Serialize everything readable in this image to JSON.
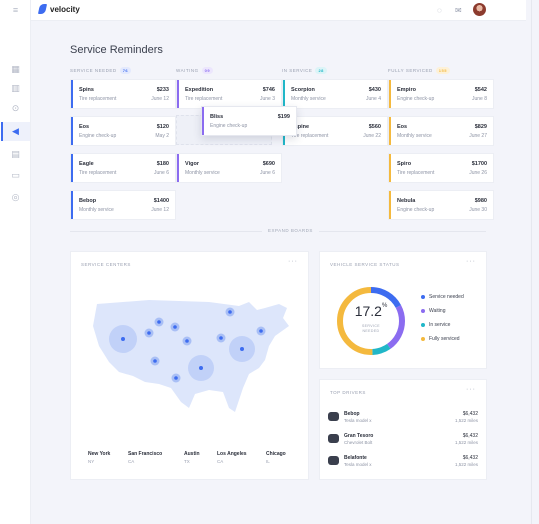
{
  "app": {
    "name": "velocity"
  },
  "page": {
    "title": "Service Reminders"
  },
  "columns": [
    {
      "label": "SERVICE NEEDED",
      "count": "76",
      "color": "#3d6cf0",
      "pill_bg": "#e3e9fd"
    },
    {
      "label": "WAITING",
      "count": "09",
      "color": "#8b6cf0",
      "pill_bg": "#ece6fd"
    },
    {
      "label": "IN SERVICE",
      "count": "28",
      "color": "#21b7c8",
      "pill_bg": "#dcf4f7"
    },
    {
      "label": "FULLY SERVICED",
      "count": "155",
      "color": "#f4b93e",
      "pill_bg": "#fdf1d8"
    }
  ],
  "cards": [
    [
      {
        "name": "Spins",
        "task": "Tire replacement",
        "price": "$233",
        "date": "June 12"
      },
      {
        "name": "Eos",
        "task": "Engine check-up",
        "price": "$120",
        "date": "May 2"
      },
      {
        "name": "Eagle",
        "task": "Tire replacement",
        "price": "$180",
        "date": "June 6"
      },
      {
        "name": "Bebop",
        "task": "Monthly service",
        "price": "$1400",
        "date": "June 12"
      }
    ],
    [
      {
        "name": "Expedition",
        "task": "Tire replacement",
        "price": "$746",
        "date": "June 3"
      },
      {
        "name": "Vigor",
        "task": "Monthly service",
        "price": "$690",
        "date": "June 6"
      }
    ],
    [
      {
        "name": "Scorpion",
        "task": "Monthly service",
        "price": "$430",
        "date": "June 4"
      },
      {
        "name": "Espine",
        "task": "Tire replacement",
        "price": "$560",
        "date": "June 22"
      }
    ],
    [
      {
        "name": "Empiro",
        "task": "Engine check-up",
        "price": "$542",
        "date": "June 8"
      },
      {
        "name": "Eos",
        "task": "Monthly service",
        "price": "$829",
        "date": "June 27"
      },
      {
        "name": "Spiro",
        "task": "Tire replacement",
        "price": "$1700",
        "date": "June 26"
      },
      {
        "name": "Nebula",
        "task": "Engine check-up",
        "price": "$980",
        "date": "June 30"
      }
    ]
  ],
  "dragging_card": {
    "name": "Bliss",
    "task": "Engine check-up",
    "price": "$199"
  },
  "expand_label": "EXPAND BOARDS",
  "service_centers": {
    "title": "SERVICE CENTERS",
    "cities": [
      {
        "city": "New York",
        "state": "NY"
      },
      {
        "city": "San Francisco",
        "state": "CA"
      },
      {
        "city": "Austin",
        "state": "TX"
      },
      {
        "city": "Los Angeles",
        "state": "CA"
      },
      {
        "city": "Chicago",
        "state": "IL"
      }
    ]
  },
  "vehicle_status": {
    "title": "VEHICLE SERVICE STATUS",
    "center_value": "17.2",
    "center_unit": "%",
    "center_label": "SERVICE NEEDED",
    "legend": [
      {
        "label": "Service needed",
        "color": "#3d6cf0",
        "value": 17.2
      },
      {
        "label": "Waiting",
        "color": "#8b6cf0",
        "value": 23
      },
      {
        "label": "In service",
        "color": "#21b7c8",
        "value": 9
      },
      {
        "label": "Fully serviced",
        "color": "#f4b93e",
        "value": 50.8
      }
    ]
  },
  "top_drivers": {
    "title": "TOP DRIVERS",
    "rows": [
      {
        "name": "Bebop",
        "model": "Tesla model x",
        "value": "$6,432",
        "miles": "1,522 miles"
      },
      {
        "name": "Gran Tesoro",
        "model": "Chevrolet Bolt",
        "value": "$6,432",
        "miles": "1,522 miles"
      },
      {
        "name": "Belafonte",
        "model": "Tesla model x",
        "value": "$6,432",
        "miles": "1,522 miles"
      }
    ]
  },
  "icons": {
    "sidebar": [
      "grid-icon",
      "chart-icon",
      "car-icon",
      "megaphone-icon",
      "calendar-icon",
      "card-icon",
      "help-icon"
    ]
  }
}
